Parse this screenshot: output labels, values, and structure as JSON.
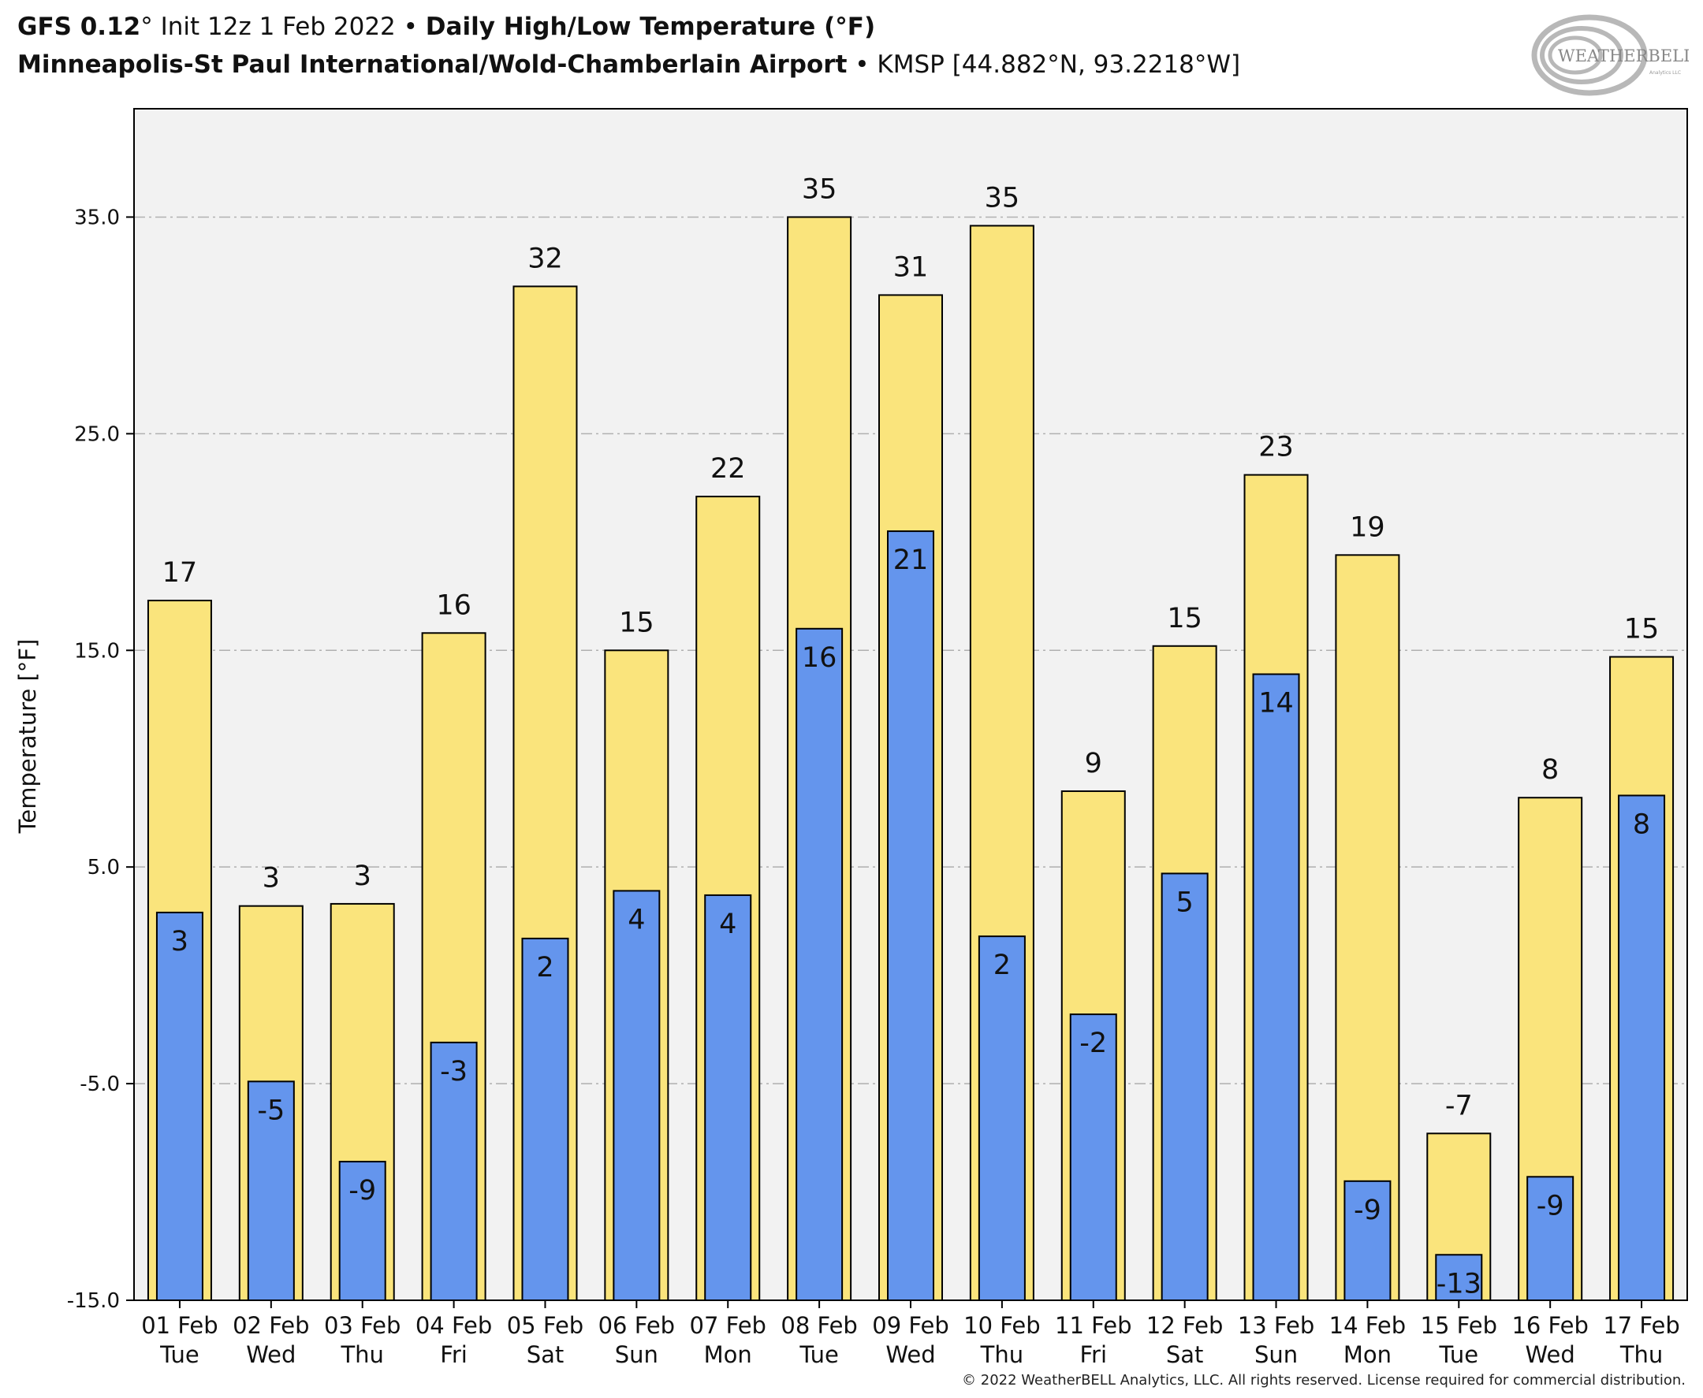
{
  "header": {
    "model": "GFS 0.12",
    "degree": "°",
    "init": " Init 12z 1 Feb 2022",
    "bullet": " • ",
    "product": "Daily High/Low Temperature (°F)",
    "station_name": "Minneapolis-St Paul International/Wold-Chamberlain Airport",
    "station_info": "KMSP [44.882°N, 93.2218°W]"
  },
  "logo": {
    "text_main": "WEATHERBELL",
    "text_sub": "Analytics LLC"
  },
  "copyright": "© 2022 WeatherBELL Analytics, LLC. All rights reserved. License required for commercial distribution.",
  "colors": {
    "high": "#fae47c",
    "low": "#6495ed",
    "plot_bg": "#f2f2f2",
    "grid": "#b0b0b0"
  },
  "chart_data": {
    "type": "bar",
    "ylabel": "Temperature [°F]",
    "ylim": [
      -15,
      40
    ],
    "yticks": [
      -15,
      -5,
      5,
      15,
      25,
      35
    ],
    "ytick_labels": [
      "-15.0",
      "-5.0",
      "5.0",
      "15.0",
      "25.0",
      "35.0"
    ],
    "grid": true,
    "categories": [
      [
        "01 Feb",
        "Tue"
      ],
      [
        "02 Feb",
        "Wed"
      ],
      [
        "03 Feb",
        "Thu"
      ],
      [
        "04 Feb",
        "Fri"
      ],
      [
        "05 Feb",
        "Sat"
      ],
      [
        "06 Feb",
        "Sun"
      ],
      [
        "07 Feb",
        "Mon"
      ],
      [
        "08 Feb",
        "Tue"
      ],
      [
        "09 Feb",
        "Wed"
      ],
      [
        "10 Feb",
        "Thu"
      ],
      [
        "11 Feb",
        "Fri"
      ],
      [
        "12 Feb",
        "Sat"
      ],
      [
        "13 Feb",
        "Sun"
      ],
      [
        "14 Feb",
        "Mon"
      ],
      [
        "15 Feb",
        "Tue"
      ],
      [
        "16 Feb",
        "Wed"
      ],
      [
        "17 Feb",
        "Thu"
      ]
    ],
    "series": [
      {
        "values": [
          17.3,
          3.2,
          3.3,
          15.8,
          31.8,
          15.0,
          22.1,
          35.0,
          31.4,
          34.6,
          8.5,
          15.2,
          23.1,
          19.4,
          -7.3,
          8.2,
          14.7
        ],
        "labels": [
          "17",
          "3",
          "3",
          "16",
          "32",
          "15",
          "22",
          "35",
          "31",
          "35",
          "9",
          "15",
          "23",
          "19",
          "-7",
          "8",
          "15"
        ]
      },
      {
        "values": [
          2.9,
          -4.9,
          -8.6,
          -3.1,
          1.7,
          3.9,
          3.7,
          16.0,
          20.5,
          1.8,
          -1.8,
          4.7,
          13.9,
          -9.5,
          -12.9,
          -9.3,
          8.3
        ],
        "labels": [
          "3",
          "-5",
          "-9",
          "-3",
          "2",
          "4",
          "4",
          "16",
          "21",
          "2",
          "-2",
          "5",
          "14",
          "-9",
          "-13",
          "-9",
          "8"
        ]
      }
    ]
  }
}
